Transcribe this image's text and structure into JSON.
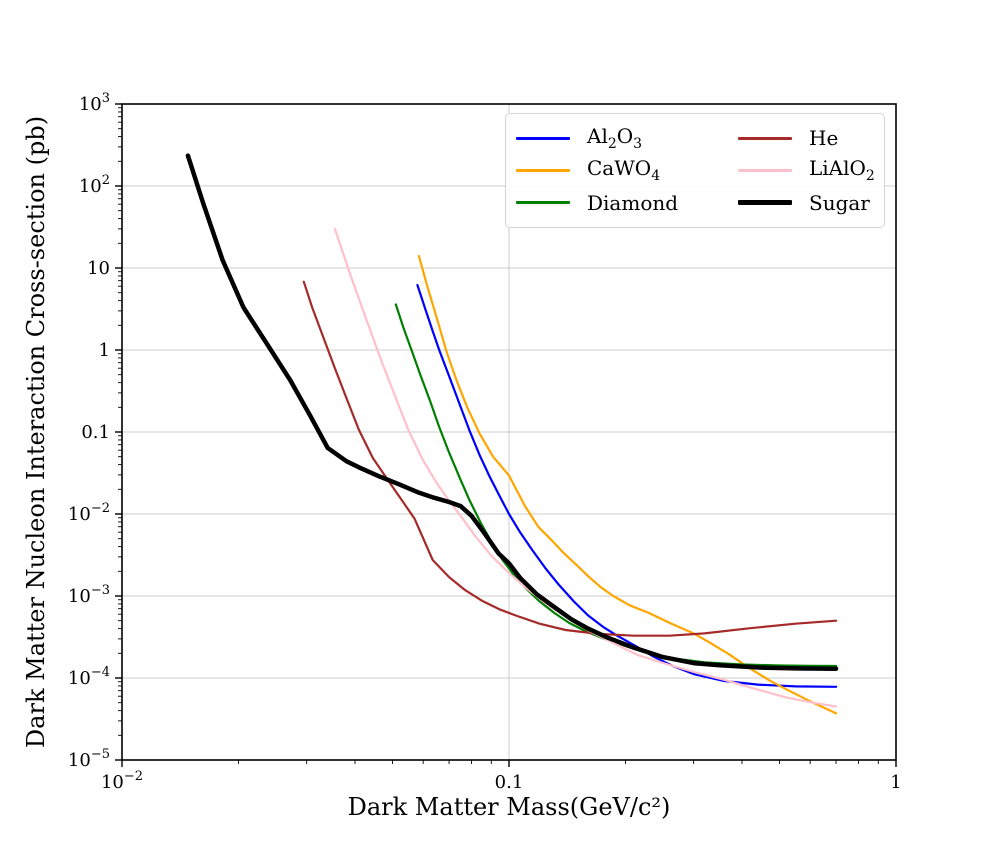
{
  "figure": {
    "background": "#ffffff",
    "spine_color": "#000000"
  },
  "chart_data": {
    "type": "line",
    "title": "",
    "xlabel": "Dark Matter Mass(GeV/c²)",
    "ylabel": "Dark Matter Nucleon Interaction Cross-section (pb)",
    "x_scale": "log",
    "y_scale": "log",
    "xlim": [
      0.01,
      1
    ],
    "ylim": [
      1e-05,
      1000
    ],
    "grid": true,
    "grid_color": "#cccccc",
    "legend_position": "upper right",
    "x_ticks": [
      {
        "value": 0.01,
        "label": "10^−2"
      },
      {
        "value": 0.1,
        "label": "0.1"
      },
      {
        "value": 1,
        "label": "1"
      }
    ],
    "y_ticks": [
      {
        "value": 1000,
        "label": "10^3"
      },
      {
        "value": 100,
        "label": "10^2"
      },
      {
        "value": 10,
        "label": "10"
      },
      {
        "value": 1,
        "label": "1"
      },
      {
        "value": 0.1,
        "label": "0.1"
      },
      {
        "value": 0.01,
        "label": "10^−2"
      },
      {
        "value": 0.001,
        "label": "10^−3"
      },
      {
        "value": 0.0001,
        "label": "10^−4"
      },
      {
        "value": 1e-05,
        "label": "10^−5"
      }
    ],
    "series": [
      {
        "name": "Al{2}O{3}",
        "color": "#0000ff",
        "line_width": 2.2,
        "points": [
          [
            0.058,
            6.2
          ],
          [
            0.061,
            3.0
          ],
          [
            0.0635,
            1.7
          ],
          [
            0.066,
            1.0
          ],
          [
            0.07,
            0.48
          ],
          [
            0.0745,
            0.22
          ],
          [
            0.079,
            0.105
          ],
          [
            0.084,
            0.052
          ],
          [
            0.089,
            0.029
          ],
          [
            0.094,
            0.0175
          ],
          [
            0.1,
            0.01
          ],
          [
            0.107,
            0.0059
          ],
          [
            0.115,
            0.0036
          ],
          [
            0.124,
            0.0022
          ],
          [
            0.134,
            0.0014
          ],
          [
            0.147,
            0.00086
          ],
          [
            0.16,
            0.00058
          ],
          [
            0.175,
            0.00042
          ],
          [
            0.19,
            0.00033
          ],
          [
            0.21,
            0.000253
          ],
          [
            0.235,
            0.000185
          ],
          [
            0.265,
            0.00014
          ],
          [
            0.3,
            0.000112
          ],
          [
            0.36,
            9.2e-05
          ],
          [
            0.44,
            8.3e-05
          ],
          [
            0.55,
            7.9e-05
          ],
          [
            0.7,
            7.8e-05
          ]
        ]
      },
      {
        "name": "CaWO{4}",
        "color": "#ffa500",
        "line_width": 2.2,
        "points": [
          [
            0.0585,
            14
          ],
          [
            0.0615,
            6.0
          ],
          [
            0.065,
            2.5
          ],
          [
            0.069,
            0.95
          ],
          [
            0.073,
            0.44
          ],
          [
            0.078,
            0.2
          ],
          [
            0.084,
            0.095
          ],
          [
            0.091,
            0.05
          ],
          [
            0.1,
            0.0295
          ],
          [
            0.11,
            0.0125
          ],
          [
            0.119,
            0.007
          ],
          [
            0.13,
            0.0046
          ],
          [
            0.138,
            0.0034
          ],
          [
            0.148,
            0.0025
          ],
          [
            0.16,
            0.00175
          ],
          [
            0.172,
            0.0013
          ],
          [
            0.186,
            0.001
          ],
          [
            0.205,
            0.00077
          ],
          [
            0.23,
            0.00062
          ],
          [
            0.26,
            0.00047
          ],
          [
            0.3,
            0.00035
          ],
          [
            0.33,
            0.00027
          ],
          [
            0.37,
            0.000195
          ],
          [
            0.415,
            0.000135
          ],
          [
            0.47,
            9.4e-05
          ],
          [
            0.52,
            7.3e-05
          ],
          [
            0.6,
            5.2e-05
          ],
          [
            0.7,
            3.7e-05
          ]
        ]
      },
      {
        "name": "Diamond",
        "color": "#008000",
        "line_width": 2.2,
        "points": [
          [
            0.051,
            3.6
          ],
          [
            0.0535,
            1.8
          ],
          [
            0.056,
            1.0
          ],
          [
            0.059,
            0.5
          ],
          [
            0.0625,
            0.24
          ],
          [
            0.066,
            0.115
          ],
          [
            0.07,
            0.056
          ],
          [
            0.0745,
            0.028
          ],
          [
            0.079,
            0.0148
          ],
          [
            0.0845,
            0.0078
          ],
          [
            0.09,
            0.0046
          ],
          [
            0.096,
            0.0028
          ],
          [
            0.103,
            0.0018
          ],
          [
            0.111,
            0.00122
          ],
          [
            0.12,
            0.00086
          ],
          [
            0.131,
            0.00062
          ],
          [
            0.143,
            0.00047
          ],
          [
            0.158,
            0.00037
          ],
          [
            0.175,
            0.000305
          ],
          [
            0.2,
            0.000245
          ],
          [
            0.23,
            0.0002
          ],
          [
            0.27,
            0.000172
          ],
          [
            0.32,
            0.000155
          ],
          [
            0.4,
            0.000146
          ],
          [
            0.5,
            0.000142
          ],
          [
            0.6,
            0.000141
          ],
          [
            0.7,
            0.00014
          ]
        ]
      },
      {
        "name": "He",
        "color": "#a52a2a",
        "line_width": 2.2,
        "points": [
          [
            0.0295,
            6.8
          ],
          [
            0.031,
            3.3
          ],
          [
            0.033,
            1.5
          ],
          [
            0.0355,
            0.6
          ],
          [
            0.038,
            0.26
          ],
          [
            0.041,
            0.105
          ],
          [
            0.0445,
            0.048
          ],
          [
            0.048,
            0.0285
          ],
          [
            0.052,
            0.0165
          ],
          [
            0.057,
            0.0088
          ],
          [
            0.0635,
            0.00275
          ],
          [
            0.07,
            0.0017
          ],
          [
            0.077,
            0.00118
          ],
          [
            0.085,
            0.00088
          ],
          [
            0.095,
            0.00068
          ],
          [
            0.105,
            0.00057
          ],
          [
            0.12,
            0.00046
          ],
          [
            0.14,
            0.000385
          ],
          [
            0.17,
            0.000345
          ],
          [
            0.21,
            0.000328
          ],
          [
            0.26,
            0.000328
          ],
          [
            0.32,
            0.00035
          ],
          [
            0.42,
            0.000405
          ],
          [
            0.55,
            0.00046
          ],
          [
            0.7,
            0.0005
          ]
        ]
      },
      {
        "name": "LiAlO{2}",
        "color": "#ffc0cb",
        "line_width": 2.2,
        "points": [
          [
            0.0355,
            30
          ],
          [
            0.039,
            8.0
          ],
          [
            0.043,
            2.2
          ],
          [
            0.047,
            0.7
          ],
          [
            0.051,
            0.26
          ],
          [
            0.055,
            0.105
          ],
          [
            0.06,
            0.045
          ],
          [
            0.065,
            0.024
          ],
          [
            0.069,
            0.016
          ],
          [
            0.075,
            0.0095
          ],
          [
            0.082,
            0.0053
          ],
          [
            0.09,
            0.0031
          ],
          [
            0.1,
            0.0019
          ],
          [
            0.112,
            0.0012
          ],
          [
            0.126,
            0.00078
          ],
          [
            0.142,
            0.00054
          ],
          [
            0.162,
            0.00037
          ],
          [
            0.185,
            0.00027
          ],
          [
            0.215,
            0.00019
          ],
          [
            0.255,
            0.000148
          ],
          [
            0.305,
            0.000116
          ],
          [
            0.36,
            9.5e-05
          ],
          [
            0.44,
            7.2e-05
          ],
          [
            0.52,
            5.8e-05
          ],
          [
            0.61,
            5e-05
          ],
          [
            0.7,
            4.5e-05
          ]
        ]
      },
      {
        "name": "Sugar",
        "color": "#000000",
        "line_width": 4.5,
        "points": [
          [
            0.0148,
            235
          ],
          [
            0.0162,
            62
          ],
          [
            0.0182,
            12.5
          ],
          [
            0.0206,
            3.3
          ],
          [
            0.0234,
            1.3
          ],
          [
            0.0272,
            0.43
          ],
          [
            0.0306,
            0.16
          ],
          [
            0.034,
            0.064
          ],
          [
            0.038,
            0.044
          ],
          [
            0.041,
            0.037
          ],
          [
            0.046,
            0.029
          ],
          [
            0.052,
            0.023
          ],
          [
            0.058,
            0.0185
          ],
          [
            0.064,
            0.0158
          ],
          [
            0.07,
            0.014
          ],
          [
            0.075,
            0.0125
          ],
          [
            0.08,
            0.0095
          ],
          [
            0.086,
            0.006
          ],
          [
            0.094,
            0.0033
          ],
          [
            0.1,
            0.0025
          ],
          [
            0.107,
            0.00165
          ],
          [
            0.118,
            0.00105
          ],
          [
            0.13,
            0.00075
          ],
          [
            0.145,
            0.00052
          ],
          [
            0.16,
            0.0004
          ],
          [
            0.18,
            0.00031
          ],
          [
            0.21,
            0.000235
          ],
          [
            0.25,
            0.00018
          ],
          [
            0.3,
            0.000152
          ],
          [
            0.35,
            0.000143
          ],
          [
            0.45,
            0.000134
          ],
          [
            0.55,
            0.000131
          ],
          [
            0.7,
            0.00013
          ]
        ]
      }
    ]
  },
  "legend": {
    "entries": [
      "Al{2}O{3}",
      "CaWO{4}",
      "Diamond",
      "He",
      "LiAlO{2}",
      "Sugar"
    ]
  }
}
